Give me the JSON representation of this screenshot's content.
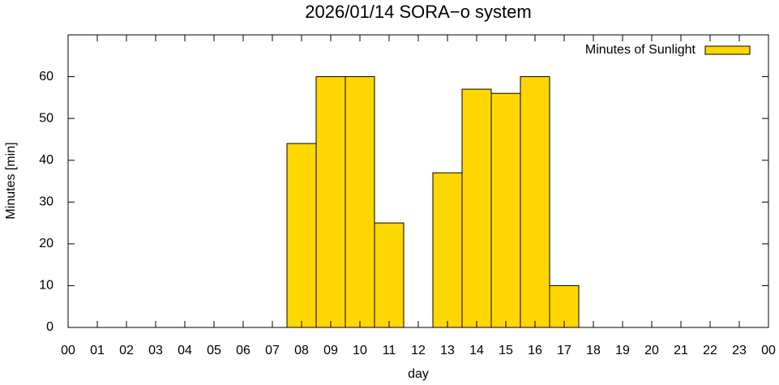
{
  "chart_data": {
    "type": "bar",
    "title": "2026/01/14 SORA−o system",
    "x_label": "day",
    "y_label": "Minutes [min]",
    "x": [
      0,
      1,
      2,
      3,
      4,
      5,
      6,
      7,
      8,
      9,
      10,
      11,
      12,
      13,
      14,
      15,
      16,
      17,
      18,
      19,
      20,
      21,
      22,
      23
    ],
    "series": [
      {
        "name": "Minutes of Sunlight",
        "color": "#ffd700",
        "values": [
          0,
          0,
          0,
          0,
          0,
          0,
          0,
          0,
          44,
          60,
          60,
          25,
          0,
          37,
          57,
          56,
          60,
          10,
          0,
          0,
          0,
          0,
          0,
          0
        ]
      }
    ],
    "xlim": [
      0,
      24
    ],
    "xticks": [
      {
        "value": 0,
        "label": "00"
      },
      {
        "value": 1,
        "label": "01"
      },
      {
        "value": 2,
        "label": "02"
      },
      {
        "value": 3,
        "label": "03"
      },
      {
        "value": 4,
        "label": "04"
      },
      {
        "value": 5,
        "label": "05"
      },
      {
        "value": 6,
        "label": "06"
      },
      {
        "value": 7,
        "label": "07"
      },
      {
        "value": 8,
        "label": "08"
      },
      {
        "value": 9,
        "label": "09"
      },
      {
        "value": 10,
        "label": "10"
      },
      {
        "value": 11,
        "label": "11"
      },
      {
        "value": 12,
        "label": "12"
      },
      {
        "value": 13,
        "label": "13"
      },
      {
        "value": 14,
        "label": "14"
      },
      {
        "value": 15,
        "label": "15"
      },
      {
        "value": 16,
        "label": "16"
      },
      {
        "value": 17,
        "label": "17"
      },
      {
        "value": 18,
        "label": "18"
      },
      {
        "value": 19,
        "label": "19"
      },
      {
        "value": 20,
        "label": "20"
      },
      {
        "value": 21,
        "label": "21"
      },
      {
        "value": 22,
        "label": "22"
      },
      {
        "value": 23,
        "label": "23"
      },
      {
        "value": 24,
        "label": "00"
      }
    ],
    "ylim": [
      0,
      70
    ],
    "yticks": [
      0,
      10,
      20,
      30,
      40,
      50,
      60
    ],
    "legend": "top-right"
  }
}
